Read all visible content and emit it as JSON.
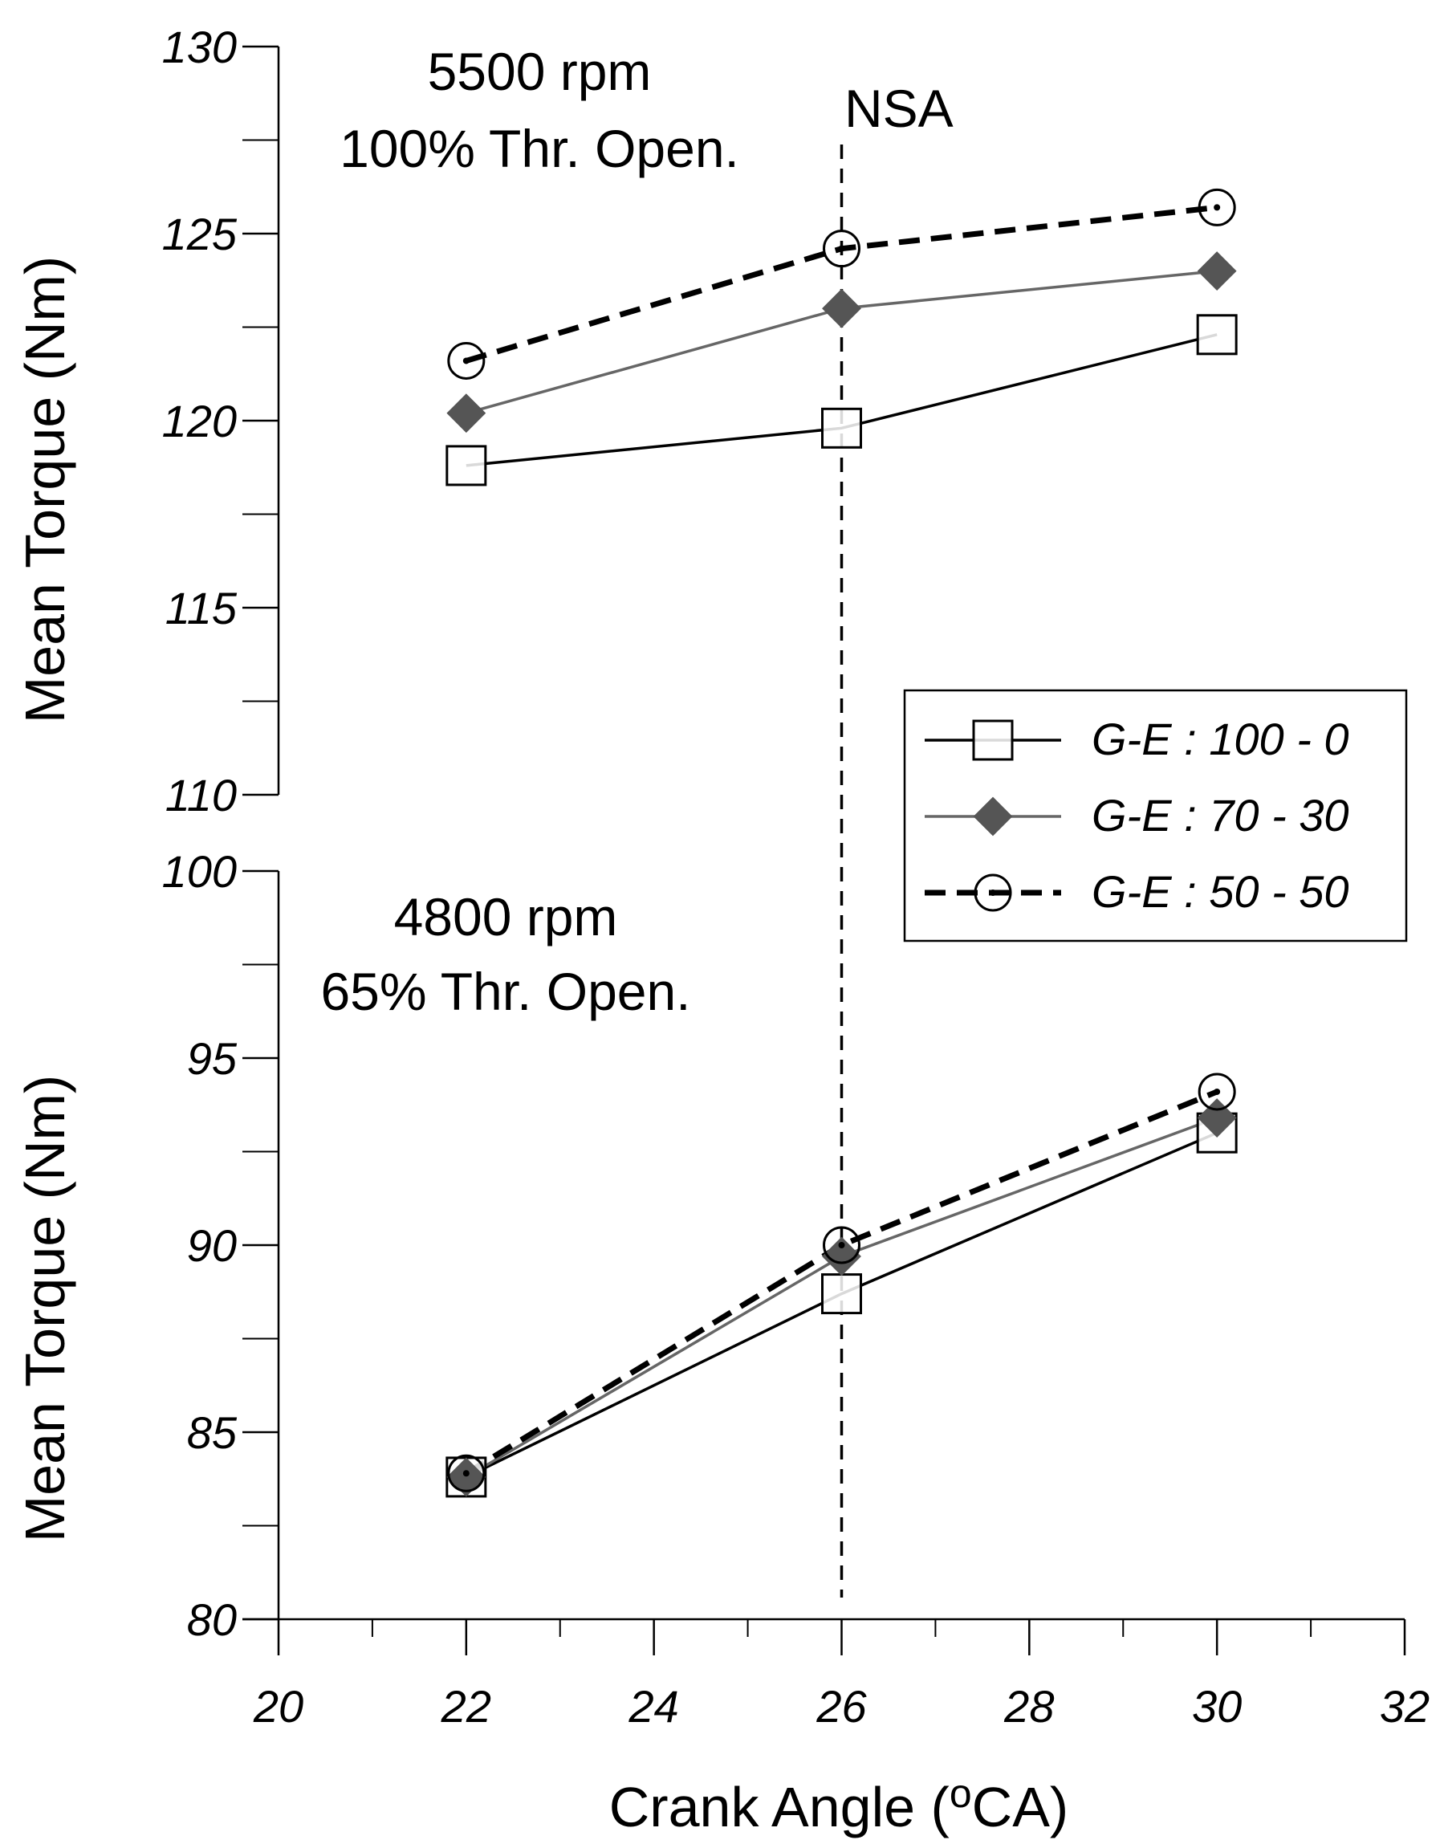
{
  "chart_data": {
    "type": "line",
    "xlabel_main": "Crank Angle (",
    "xlabel_sup": "o",
    "xlabel_end": "CA)",
    "x_ticks": [
      "20",
      "22",
      "24",
      "26",
      "28",
      "30",
      "32"
    ],
    "xlim": [
      20,
      32
    ],
    "x": [
      22,
      26,
      30
    ],
    "reference_line": {
      "x": 26,
      "label": "NSA"
    },
    "legend": {
      "position": "right-middle",
      "entries": [
        "G-E : 100 - 0",
        "G-E : 70 - 30",
        "G-E : 50 - 50"
      ]
    },
    "colors": {
      "s0": "#000000",
      "s1": "#666666",
      "s2": "#000000",
      "marker1": "#555555"
    },
    "panels": [
      {
        "id": "top",
        "title_line1": "5500 rpm",
        "title_line2": "100% Thr. Open.",
        "ylabel": "Mean Torque (Nm)",
        "ylim": [
          110,
          130
        ],
        "y_ticks": [
          "110",
          "115",
          "120",
          "125",
          "130"
        ],
        "series": [
          {
            "name": "G-E : 100 - 0",
            "values": [
              118.8,
              119.8,
              122.3
            ]
          },
          {
            "name": "G-E : 70 - 30",
            "values": [
              120.2,
              123.0,
              124.0
            ]
          },
          {
            "name": "G-E : 50 - 50",
            "values": [
              121.6,
              124.6,
              125.7
            ]
          }
        ]
      },
      {
        "id": "bottom",
        "title_line1": "4800 rpm",
        "title_line2": "65% Thr. Open.",
        "ylabel": "Mean Torque (Nm)",
        "ylim": [
          80,
          100
        ],
        "y_ticks": [
          "80",
          "85",
          "90",
          "95",
          "100"
        ],
        "series": [
          {
            "name": "G-E : 100 - 0",
            "values": [
              83.8,
              88.7,
              93.0
            ]
          },
          {
            "name": "G-E : 70 - 30",
            "values": [
              83.8,
              89.7,
              93.4
            ]
          },
          {
            "name": "G-E : 50 - 50",
            "values": [
              83.9,
              90.0,
              94.1
            ]
          }
        ]
      }
    ]
  }
}
